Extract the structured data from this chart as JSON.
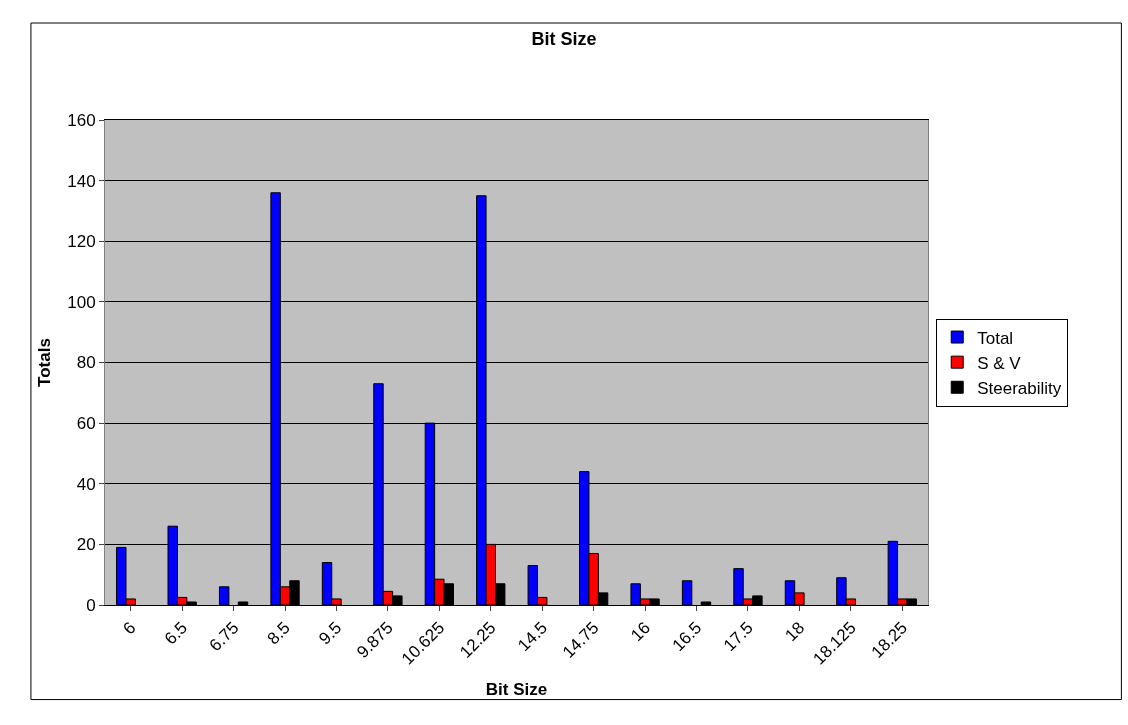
{
  "chart_data": {
    "type": "bar",
    "title": "Bit Size",
    "xlabel": "Bit Size",
    "ylabel": "Totals",
    "categories": [
      "6",
      "6.5",
      "6.75",
      "8.5",
      "9.5",
      "9.875",
      "10.625",
      "12.25",
      "14.5",
      "14.75",
      "16",
      "16.5",
      "17.5",
      "18",
      "18.125",
      "18.25"
    ],
    "series": [
      {
        "name": "Total",
        "color": "#0000ff",
        "values": [
          19,
          26,
          6,
          136,
          14,
          73,
          60,
          135,
          13,
          44,
          7,
          8,
          12,
          8,
          9,
          21
        ]
      },
      {
        "name": "S & V",
        "color": "#ff0000",
        "values": [
          2,
          2.5,
          null,
          6,
          2,
          4.5,
          8.5,
          20,
          2.5,
          17,
          2,
          null,
          2,
          4,
          2,
          2
        ]
      },
      {
        "name": "Steerability",
        "color": "#000000",
        "values": [
          null,
          1,
          1,
          8,
          null,
          3,
          7,
          7,
          null,
          4,
          2,
          1,
          3,
          null,
          null,
          2
        ]
      }
    ],
    "ylim": [
      0,
      160
    ],
    "yticks": [
      0,
      20,
      40,
      60,
      80,
      100,
      120,
      140,
      160
    ],
    "grid": "y",
    "legend": "right"
  }
}
